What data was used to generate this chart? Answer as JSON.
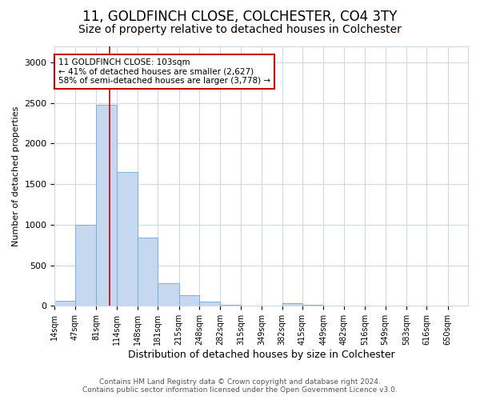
{
  "title1": "11, GOLDFINCH CLOSE, COLCHESTER, CO4 3TY",
  "title2": "Size of property relative to detached houses in Colchester",
  "xlabel": "Distribution of detached houses by size in Colchester",
  "ylabel": "Number of detached properties",
  "bin_edges": [
    14,
    47,
    81,
    114,
    148,
    181,
    215,
    248,
    282,
    315,
    349,
    382,
    415,
    449,
    482,
    516,
    549,
    583,
    616,
    650,
    683
  ],
  "bar_heights": [
    60,
    1000,
    2475,
    1650,
    840,
    275,
    130,
    50,
    14,
    0,
    0,
    35,
    15,
    0,
    0,
    0,
    0,
    0,
    0,
    0
  ],
  "bar_color": "#c5d8f0",
  "bar_edgecolor": "#6aaad4",
  "vline_x": 103,
  "vline_color": "#cc0000",
  "annotation_text": "11 GOLDFINCH CLOSE: 103sqm\n← 41% of detached houses are smaller (2,627)\n58% of semi-detached houses are larger (3,778) →",
  "annotation_box_color": "#cc0000",
  "ylim": [
    0,
    3200
  ],
  "yticks": [
    0,
    500,
    1000,
    1500,
    2000,
    2500,
    3000
  ],
  "footer1": "Contains HM Land Registry data © Crown copyright and database right 2024.",
  "footer2": "Contains public sector information licensed under the Open Government Licence v3.0.",
  "bg_color": "#ffffff",
  "grid_color": "#ccd9ea",
  "title1_fontsize": 12,
  "title2_fontsize": 10,
  "xlabel_fontsize": 9,
  "ylabel_fontsize": 8,
  "xtick_fontsize": 7,
  "ytick_fontsize": 8,
  "footer_fontsize": 6.5
}
